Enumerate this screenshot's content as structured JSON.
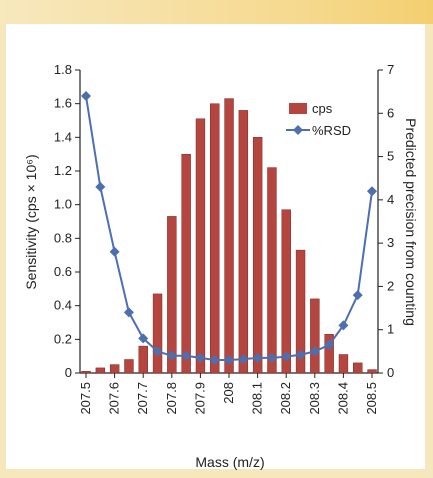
{
  "chart_data": {
    "type": "bar",
    "categories": [
      "207.5",
      "207.6",
      "207.7",
      "207.8",
      "207.9",
      "208",
      "208.1",
      "208.2",
      "208.3",
      "208.4",
      "208.5"
    ],
    "x": [
      207.5,
      207.55,
      207.6,
      207.65,
      207.7,
      207.75,
      207.8,
      207.85,
      207.9,
      207.95,
      208.0,
      208.05,
      208.1,
      208.15,
      208.2,
      208.25,
      208.3,
      208.35,
      208.4,
      208.45,
      208.5
    ],
    "series": [
      {
        "name": "cps",
        "axis": "left",
        "color": "#b5463f",
        "values": [
          0.01,
          0.03,
          0.05,
          0.08,
          0.16,
          0.47,
          0.93,
          1.3,
          1.51,
          1.6,
          1.63,
          1.56,
          1.4,
          1.22,
          0.97,
          0.73,
          0.44,
          0.23,
          0.11,
          0.06,
          0.02
        ]
      },
      {
        "name": "%RSD",
        "axis": "right",
        "color": "#4d6fb0",
        "values": [
          6.4,
          4.3,
          2.8,
          1.4,
          0.8,
          0.5,
          0.4,
          0.4,
          0.35,
          0.3,
          0.3,
          0.32,
          0.35,
          0.35,
          0.38,
          0.42,
          0.5,
          0.65,
          1.1,
          1.8,
          4.2
        ]
      }
    ],
    "title": "",
    "xlabel": "Mass (m/z)",
    "ylabel": "Sensitivity (cps × 10⁶)",
    "ylabel_right": "Predicted precision from counting",
    "ylim": [
      0,
      1.8
    ],
    "ylim_right": [
      0,
      7
    ],
    "yticks": [
      "0",
      "0.2",
      "0.4",
      "0.6",
      "0.8",
      "1.0",
      "1.2",
      "1.4",
      "1.6",
      "1.8"
    ],
    "yticks_right": [
      "0",
      "1",
      "2",
      "3",
      "4",
      "5",
      "6",
      "7"
    ],
    "legend": [
      "cps",
      "%RSD"
    ],
    "legend_position": "top-right",
    "grid": false
  }
}
